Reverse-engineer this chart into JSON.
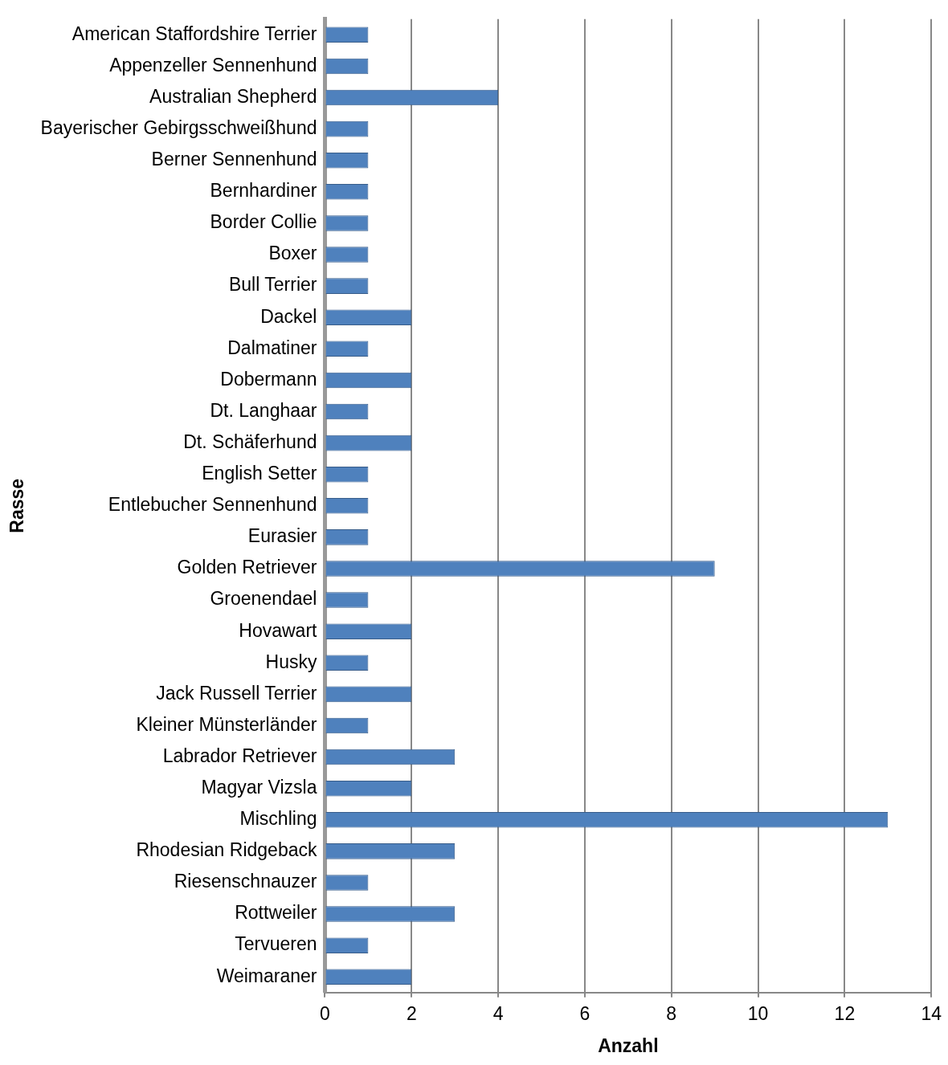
{
  "chart_data": {
    "type": "bar",
    "orientation": "horizontal",
    "xlabel": "Anzahl",
    "ylabel": "Rasse",
    "categories": [
      "American Staffordshire Terrier",
      "Appenzeller Sennenhund",
      "Australian Shepherd",
      "Bayerischer Gebirgsschweißhund",
      "Berner Sennenhund",
      "Bernhardiner",
      "Border Collie",
      "Boxer",
      "Bull Terrier",
      "Dackel",
      "Dalmatiner",
      "Dobermann",
      "Dt. Langhaar",
      "Dt. Schäferhund",
      "English Setter",
      "Entlebucher Sennenhund",
      "Eurasier",
      "Golden Retriever",
      "Groenendael",
      "Hovawart",
      "Husky",
      "Jack Russell Terrier",
      "Kleiner Münsterländer",
      "Labrador Retriever",
      "Magyar Vizsla",
      "Mischling",
      "Rhodesian Ridgeback",
      "Riesenschnauzer",
      "Rottweiler",
      "Tervueren",
      "Weimaraner"
    ],
    "values": [
      1,
      1,
      4,
      1,
      1,
      1,
      1,
      1,
      1,
      2,
      1,
      2,
      1,
      2,
      1,
      1,
      1,
      9,
      1,
      2,
      1,
      2,
      1,
      3,
      2,
      13,
      3,
      1,
      3,
      1,
      2
    ],
    "color": "#4f81bd",
    "xlim": [
      0,
      14
    ],
    "xticks": [
      0,
      2,
      4,
      6,
      8,
      10,
      12,
      14
    ],
    "grid": "x",
    "legend": false
  }
}
